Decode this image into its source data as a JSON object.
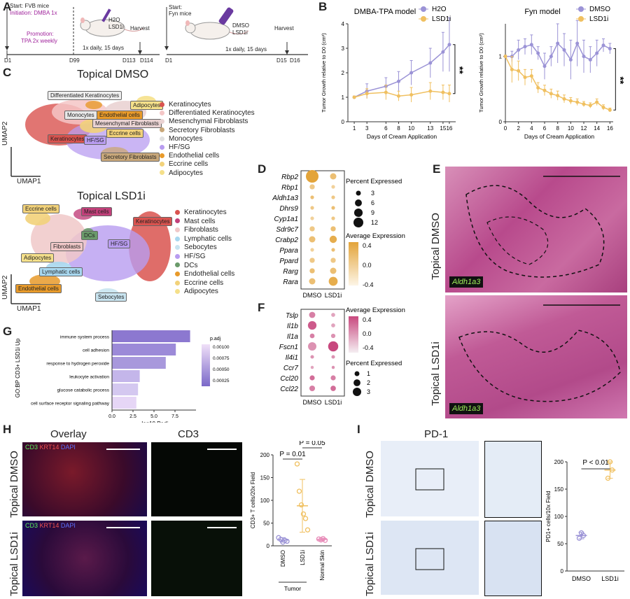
{
  "panel_labels": {
    "A": "A",
    "B": "B",
    "C": "C",
    "D": "D",
    "E": "E",
    "F": "F",
    "G": "G",
    "H": "H",
    "I": "I"
  },
  "panelA": {
    "left": {
      "start": "Start: FVB mice",
      "initiation": "Initiation: DMBA 1x",
      "promotion": "Promotion:",
      "promotion2": "TPA 2x weekly",
      "treatment": "H2O\nLSD1i",
      "harvest": "Harvest",
      "dosing": "1x daily, 15 days",
      "ticks": [
        "D1",
        "D99",
        "D113",
        "D114"
      ]
    },
    "right": {
      "start": "Start:",
      "start2": "Fyn mice",
      "treatment": "DMSO\nLSD1i",
      "harvest": "Harvest",
      "dosing": "1x daily, 15 days",
      "ticks": [
        "D1",
        "D15",
        "D16"
      ]
    }
  },
  "chart_data": [
    {
      "type": "line",
      "title": "DMBA-TPA model",
      "xlabel": "Days of Cream Application",
      "ylabel": "Tumor Growth relative to D0 (cm²)",
      "x": [
        1,
        3,
        6,
        8,
        10,
        13,
        15,
        16
      ],
      "xlim": [
        0,
        17
      ],
      "ylim": [
        0,
        4
      ],
      "yticks": [
        0,
        1,
        2,
        3,
        4
      ],
      "series": [
        {
          "name": "H2O",
          "color": "#9b93d6",
          "values": [
            1.0,
            1.25,
            1.45,
            1.65,
            2.0,
            2.4,
            2.85,
            3.15
          ],
          "err": [
            0.05,
            0.3,
            0.35,
            0.4,
            0.5,
            0.6,
            0.8,
            1.1
          ]
        },
        {
          "name": "LSD1i",
          "color": "#f0c060",
          "values": [
            1.0,
            1.15,
            1.2,
            1.05,
            1.1,
            1.25,
            1.2,
            1.15
          ],
          "err": [
            0.05,
            0.2,
            0.3,
            0.2,
            0.3,
            0.35,
            0.3,
            0.35
          ]
        }
      ],
      "significance": "**",
      "legend": "top-right"
    },
    {
      "type": "line",
      "title": "Fyn model",
      "xlabel": "Days of Cream Application",
      "ylabel": "Tumor Growth relative to D0 (cm²)",
      "x": [
        0,
        1,
        2,
        3,
        4,
        5,
        6,
        7,
        8,
        9,
        10,
        11,
        12,
        13,
        14,
        15,
        16
      ],
      "xlim": [
        0,
        16.5
      ],
      "ylim": [
        0,
        1.5
      ],
      "yticks": [
        0,
        1
      ],
      "xticks": [
        0,
        2,
        4,
        6,
        8,
        10,
        12,
        14,
        16
      ],
      "series": [
        {
          "name": "DMSO",
          "color": "#9b93d6",
          "values": [
            1.0,
            1.0,
            1.1,
            1.15,
            1.18,
            1.05,
            0.85,
            1.0,
            1.2,
            1.1,
            0.95,
            1.2,
            1.0,
            0.95,
            1.05,
            1.17,
            1.12
          ],
          "err": [
            0.02,
            0.08,
            0.15,
            0.12,
            0.15,
            0.1,
            0.2,
            0.15,
            0.3,
            0.25,
            0.3,
            0.35,
            0.25,
            0.2,
            0.2,
            0.1,
            0.08
          ]
        },
        {
          "name": "LSD1i",
          "color": "#f0c060",
          "values": [
            1.0,
            0.8,
            0.78,
            0.68,
            0.7,
            0.52,
            0.48,
            0.43,
            0.4,
            0.35,
            0.32,
            0.3,
            0.27,
            0.25,
            0.3,
            0.22,
            0.18
          ],
          "err": [
            0.02,
            0.2,
            0.15,
            0.12,
            0.1,
            0.08,
            0.08,
            0.07,
            0.07,
            0.06,
            0.05,
            0.05,
            0.04,
            0.04,
            0.05,
            0.04,
            0.03
          ]
        }
      ],
      "significance": "**",
      "legend": "top-right"
    },
    {
      "type": "scatter",
      "title": "D",
      "categories": [
        "DMSO",
        "LSD1i"
      ],
      "genes": [
        "Rbp2",
        "Rbp1",
        "Aldh1a3",
        "Dhrs9",
        "Cyp1a1",
        "Sdr9c7",
        "Crabp2",
        "Ppara",
        "Ppard",
        "Rarg",
        "Rara"
      ],
      "pct": [
        [
          12,
          3
        ],
        [
          2,
          1
        ],
        [
          1,
          1
        ],
        [
          1,
          1
        ],
        [
          1,
          1
        ],
        [
          2,
          2
        ],
        [
          3,
          4
        ],
        [
          1,
          1
        ],
        [
          2,
          2
        ],
        [
          2,
          3
        ],
        [
          3,
          6
        ]
      ],
      "avg": [
        [
          0.5,
          0.2
        ],
        [
          0.1,
          0.0
        ],
        [
          0.2,
          0.1
        ],
        [
          0.1,
          0.2
        ],
        [
          0.0,
          0.1
        ],
        [
          0.1,
          0.2
        ],
        [
          0.2,
          0.4
        ],
        [
          0.0,
          0.2
        ],
        [
          0.1,
          0.1
        ],
        [
          0.2,
          0.2
        ],
        [
          0.2,
          0.4
        ]
      ],
      "legend_pct_title": "Percent Expressed",
      "legend_pct": [
        3,
        6,
        9,
        12
      ],
      "legend_avg_title": "Average Expression",
      "legend_avg": [
        "0.4",
        "0.2",
        "0.0",
        "-0.2",
        "-0.4"
      ]
    },
    {
      "type": "scatter",
      "title": "F",
      "categories": [
        "DMSO",
        "LSD1i"
      ],
      "genes": [
        "Tslp",
        "Il1b",
        "Il1a",
        "Fscn1",
        "Il4i1",
        "Ccr7",
        "Ccl20",
        "Ccl22"
      ],
      "pct": [
        [
          1.2,
          0.5
        ],
        [
          2.3,
          0.5
        ],
        [
          0.7,
          0.6
        ],
        [
          2.2,
          3.2
        ],
        [
          0.4,
          0.4
        ],
        [
          0.3,
          0.3
        ],
        [
          0.8,
          0.8
        ],
        [
          1.0,
          0.9
        ]
      ],
      "avg": [
        [
          0.2,
          0.0
        ],
        [
          0.4,
          0.0
        ],
        [
          0.2,
          0.1
        ],
        [
          0.1,
          0.5
        ],
        [
          0.1,
          0.1
        ],
        [
          0.0,
          0.1
        ],
        [
          0.3,
          0.2
        ],
        [
          0.2,
          0.3
        ]
      ],
      "legend_avg_title": "Average Expression",
      "legend_avg": [
        "0.4",
        "0.0",
        "-0.4"
      ],
      "legend_pct_title": "Percent Expressed",
      "legend_pct": [
        1,
        2,
        3
      ]
    },
    {
      "type": "bar",
      "title": "G",
      "ylabel": "GO:BP CD3+ LSD1i Up",
      "xlabel": "-log10 Padj",
      "categories": [
        "immune system process",
        "cell adhesion",
        "response to hydrogen peroxide",
        "leukocyte activation",
        "glucose catabolic process",
        "cell surface receptor signaling pathway"
      ],
      "values": [
        9.3,
        7.6,
        6.4,
        3.3,
        3.1,
        2.9
      ],
      "padj": [
        0.00025,
        0.0004,
        0.0005,
        0.0009,
        0.001,
        0.0011
      ],
      "xlim": [
        0,
        10
      ],
      "xticks": [
        "0.0",
        "2.5",
        "5.0",
        "7.5"
      ],
      "legend_title": "p.adj",
      "legend_ticks": [
        "0.00100",
        "0.00075",
        "0.00050",
        "0.00025"
      ]
    },
    {
      "type": "scatter",
      "title": "H",
      "ylabel": "CD3+ T cells/20x Field",
      "categories": [
        "DMSO",
        "LSD1i",
        "Normal Skin"
      ],
      "group_label": "Tumor",
      "ylim": [
        0,
        200
      ],
      "yticks": [
        0,
        50,
        100,
        150,
        200
      ],
      "points": [
        [
          18,
          14,
          8,
          12,
          10
        ],
        [
          180,
          120,
          90,
          70,
          60,
          35
        ],
        [
          15,
          13,
          16,
          12
        ]
      ],
      "means": [
        13,
        88,
        14
      ],
      "err": [
        5,
        58,
        3
      ],
      "colors": [
        "#9b93d6",
        "#f0c060",
        "#e88bb8"
      ],
      "pvalues": [
        "P = 0.01",
        "P = 0.05"
      ]
    },
    {
      "type": "scatter",
      "title": "I",
      "ylabel": "PD1+ cells/10x Field",
      "categories": [
        "DMSO",
        "LSD1i"
      ],
      "ylim": [
        0,
        200
      ],
      "yticks": [
        0,
        50,
        100,
        150,
        200
      ],
      "points": [
        [
          60,
          70,
          65
        ],
        [
          170,
          200,
          185
        ]
      ],
      "means": [
        65,
        185
      ],
      "err": [
        6,
        15
      ],
      "colors": [
        "#9b93d6",
        "#f0c060"
      ],
      "pvalues": [
        "P < 0.01"
      ]
    }
  ],
  "panelC": {
    "dmso_title": "Topical DMSO",
    "lsd1i_title": "Topical LSD1i",
    "umap1": "UMAP1",
    "umap2": "UMAP2",
    "dmso_legend": [
      {
        "label": "Keratinocytes",
        "color": "#d9534f"
      },
      {
        "label": "Differentiated Keratinocytes",
        "color": "#f4c6c6"
      },
      {
        "label": "Mesenchymal Fibroblasts",
        "color": "#ead3d3"
      },
      {
        "label": "Secretory Fibroblasts",
        "color": "#c9a87a"
      },
      {
        "label": "Monocytes",
        "color": "#e0e0e0"
      },
      {
        "label": "HF/SG",
        "color": "#b89cf0"
      },
      {
        "label": "Endothelial cells",
        "color": "#e89a2a"
      },
      {
        "label": "Eccrine cells",
        "color": "#f2d27a"
      },
      {
        "label": "Adipocytes",
        "color": "#f5e08a"
      }
    ],
    "lsd1i_legend": [
      {
        "label": "Keratinocytes",
        "color": "#d9534f"
      },
      {
        "label": "Mast cells",
        "color": "#c2407a"
      },
      {
        "label": "Fibroblasts",
        "color": "#f0c8c8"
      },
      {
        "label": "Lymphatic cells",
        "color": "#a8d8f0"
      },
      {
        "label": "Sebocytes",
        "color": "#c8e4f0"
      },
      {
        "label": "HF/SG",
        "color": "#b89cf0"
      },
      {
        "label": "DCs",
        "color": "#6a9a6a"
      },
      {
        "label": "Endothelial cells",
        "color": "#e89a2a"
      },
      {
        "label": "Eccrine cells",
        "color": "#f2d27a"
      },
      {
        "label": "Adipocytes",
        "color": "#f5e08a"
      }
    ],
    "dmso_tags": [
      "Differentiated Keratinocytes",
      "Adipocytes",
      "Monocytes",
      "Endothelial cells",
      "Mesenchymal Fibroblasts",
      "Keratinocytes",
      "HF/SG",
      "Eccrine cells",
      "Secretory Fibroblasts"
    ],
    "lsd1i_tags": [
      "Eccrine cells",
      "Mast cells",
      "Keratinocytes",
      "DCs",
      "Fibroblasts",
      "HF/SG",
      "Adipocytes",
      "Lymphatic cells",
      "Endothelial cells",
      "Sebocytes"
    ]
  },
  "panelE": {
    "top_label": "Topical DMSO",
    "bottom_label": "Topical LSD1i",
    "marker": "Aldh1a3"
  },
  "panelH": {
    "overlay": "Overlay",
    "cd3": "CD3",
    "row1": "Topical DMSO",
    "row2": "Topical LSD1i",
    "stain_cd3": "CD3",
    "stain_krt14": "KRT14",
    "stain_dapi": "DAPI"
  },
  "panelI": {
    "title": "PD-1",
    "row1": "Topical DMSO",
    "row2": "Topical LSD1i"
  }
}
